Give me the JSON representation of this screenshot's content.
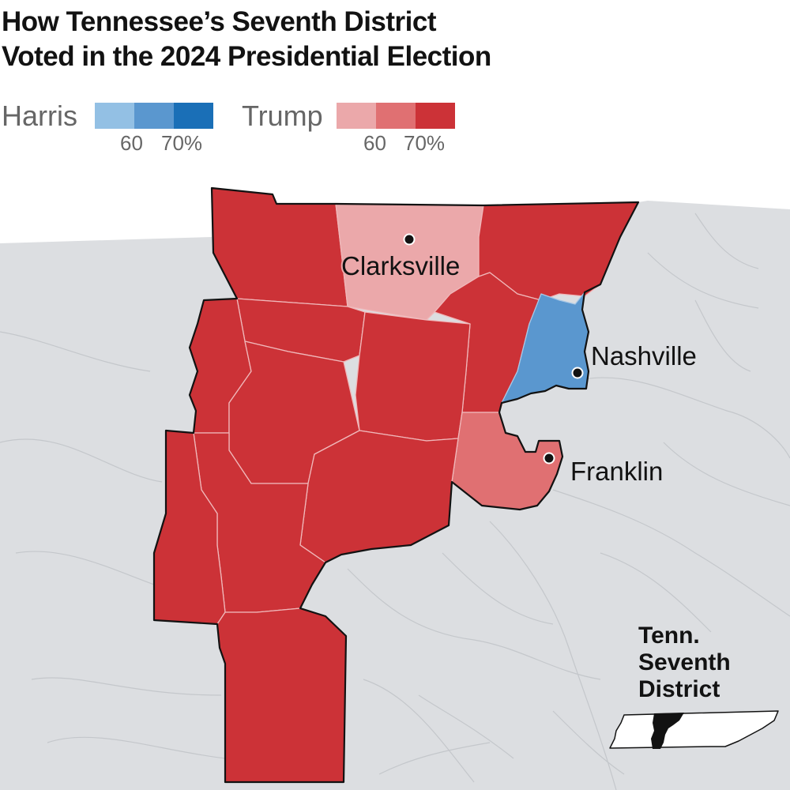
{
  "title": {
    "line1": "How Tennessee’s Seventh District",
    "line2": "Voted in the 2024 Presidential Election"
  },
  "legend": {
    "harris": {
      "label": "Harris",
      "colors": [
        "#93c0e4",
        "#5a97cf",
        "#1a6fb7"
      ],
      "tick_60": "60",
      "tick_70": "70%"
    },
    "trump": {
      "label": "Trump",
      "colors": [
        "#eba8aa",
        "#e07072",
        "#cc3237"
      ],
      "tick_60": "60",
      "tick_70": "70%"
    }
  },
  "cities": {
    "clarksville": "Clarksville",
    "nashville": "Nashville",
    "franklin": "Franklin"
  },
  "inset": {
    "line1": "Tenn.",
    "line2": "Seventh",
    "line3": "District"
  },
  "colors": {
    "background_land": "#dcdee1",
    "harris_majority": "#5a97cf",
    "trump_light": "#eba8aa",
    "trump_medium": "#e07072",
    "trump_dark": "#cc3237"
  }
}
